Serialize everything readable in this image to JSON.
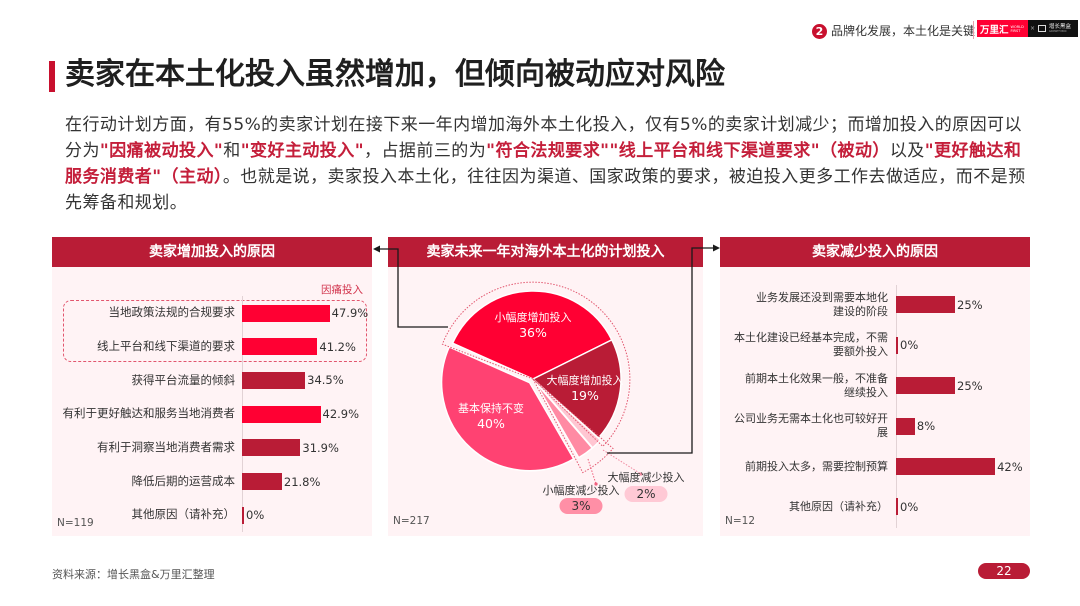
{
  "header": {
    "section_number": "2",
    "section_title": "品牌化发展，本土化是关键",
    "logo": {
      "worldfirst_cn": "万里汇",
      "worldfirst_en": "WORLD FIRST",
      "separator": "×",
      "growthbox_cn": "增长黑盒",
      "growthbox_en": "GROWTH BOX"
    }
  },
  "title": "卖家在本土化投入虽然增加，但倾向被动应对风险",
  "intro": {
    "segments": [
      {
        "text": "在行动计划方面，有55%的卖家计划在接下来一年内增加海外本土化投入，仅有5%的卖家计划减少；而增加投入的原因可以分为",
        "highlight": false
      },
      {
        "text": "\"因痛被动投入\"",
        "highlight": true
      },
      {
        "text": "和",
        "highlight": false
      },
      {
        "text": "\"变好主动投入\"",
        "highlight": true
      },
      {
        "text": "，占据前三的为",
        "highlight": false
      },
      {
        "text": "\"符合法规要求\"\"线上平台和线下渠道要求\"（被动）",
        "highlight": true
      },
      {
        "text": "以及",
        "highlight": false
      },
      {
        "text": "\"更好触达和服务消费者\"（主动）",
        "highlight": true
      },
      {
        "text": "。也就是说，卖家投入本土化，往往因为渠道、国家政策的要求，被迫投入更多工作去做适应，而不是预先筹备和规划。",
        "highlight": false
      }
    ]
  },
  "colors": {
    "brand_dark_red": "#B91C36",
    "bright_red": "#FF0033",
    "panel_bg": "#FFF3F5",
    "highlight_text": "#C41E3A"
  },
  "chart_data": [
    {
      "type": "bar",
      "orientation": "horizontal",
      "title": "卖家增加投入的原因",
      "categories": [
        "当地政策法规的合规要求",
        "线上平台和线下渠道的要求",
        "获得平台流量的倾斜",
        "有利于更好触达和服务当地消费者",
        "有利于洞察当地消费者需求",
        "降低后期的运营成本",
        "其他原因（请补充）"
      ],
      "values": [
        47.9,
        41.2,
        34.5,
        42.9,
        31.9,
        21.8,
        0
      ],
      "value_labels": [
        "47.9%",
        "41.2%",
        "34.5%",
        "42.9%",
        "31.9%",
        "21.8%",
        "0%"
      ],
      "unit": "%",
      "colors": [
        "#FF0033",
        "#FF0033",
        "#B91C36",
        "#FF0033",
        "#B91C36",
        "#B91C36",
        "#B91C36"
      ],
      "group_annotation": {
        "label": "因痛投入",
        "category_indices": [
          0,
          1
        ]
      },
      "sample_size": "N=119",
      "xlabel": "",
      "ylabel": "",
      "grid": false,
      "legend": "none"
    },
    {
      "type": "pie",
      "title": "卖家未来一年对海外本土化的计划投入",
      "categories": [
        "小幅度增加投入",
        "大幅度增加投入",
        "大幅度减少投入",
        "小幅度减少投入",
        "基本保持不变"
      ],
      "values": [
        36,
        19,
        2,
        3,
        40
      ],
      "value_labels": [
        "36%",
        "19%",
        "2%",
        "3%",
        "40%"
      ],
      "unit": "%",
      "colors": [
        "#FF0033",
        "#B91C36",
        "#FFC6D2",
        "#FF8AA3",
        "#FF4272"
      ],
      "sample_size": "N=217",
      "legend": "none"
    },
    {
      "type": "bar",
      "orientation": "horizontal",
      "title": "卖家减少投入的原因",
      "categories": [
        "业务发展还没到需要本地化\n建设的阶段",
        "本土化建设已经基本完成，不需\n要额外投入",
        "前期本土化效果一般，不准备\n继续投入",
        "公司业务无需本土化也可较好开\n展",
        "前期投入太多，需要控制预算",
        "其他原因（请补充）"
      ],
      "values": [
        25,
        0,
        25,
        8,
        42,
        0
      ],
      "value_labels": [
        "25%",
        "0%",
        "25%",
        "8%",
        "42%",
        "0%"
      ],
      "unit": "%",
      "colors": [
        "#B91C36",
        "#B91C36",
        "#B91C36",
        "#B91C36",
        "#B91C36",
        "#B91C36"
      ],
      "sample_size": "N=12",
      "xlabel": "",
      "ylabel": "",
      "grid": false,
      "legend": "none"
    }
  ],
  "footer": {
    "source": "资料来源：增长黑盒&万里汇整理",
    "page_number": "22"
  },
  "icons": {
    "connector_left": "arrow-left-icon",
    "connector_right": "arrow-right-icon"
  }
}
